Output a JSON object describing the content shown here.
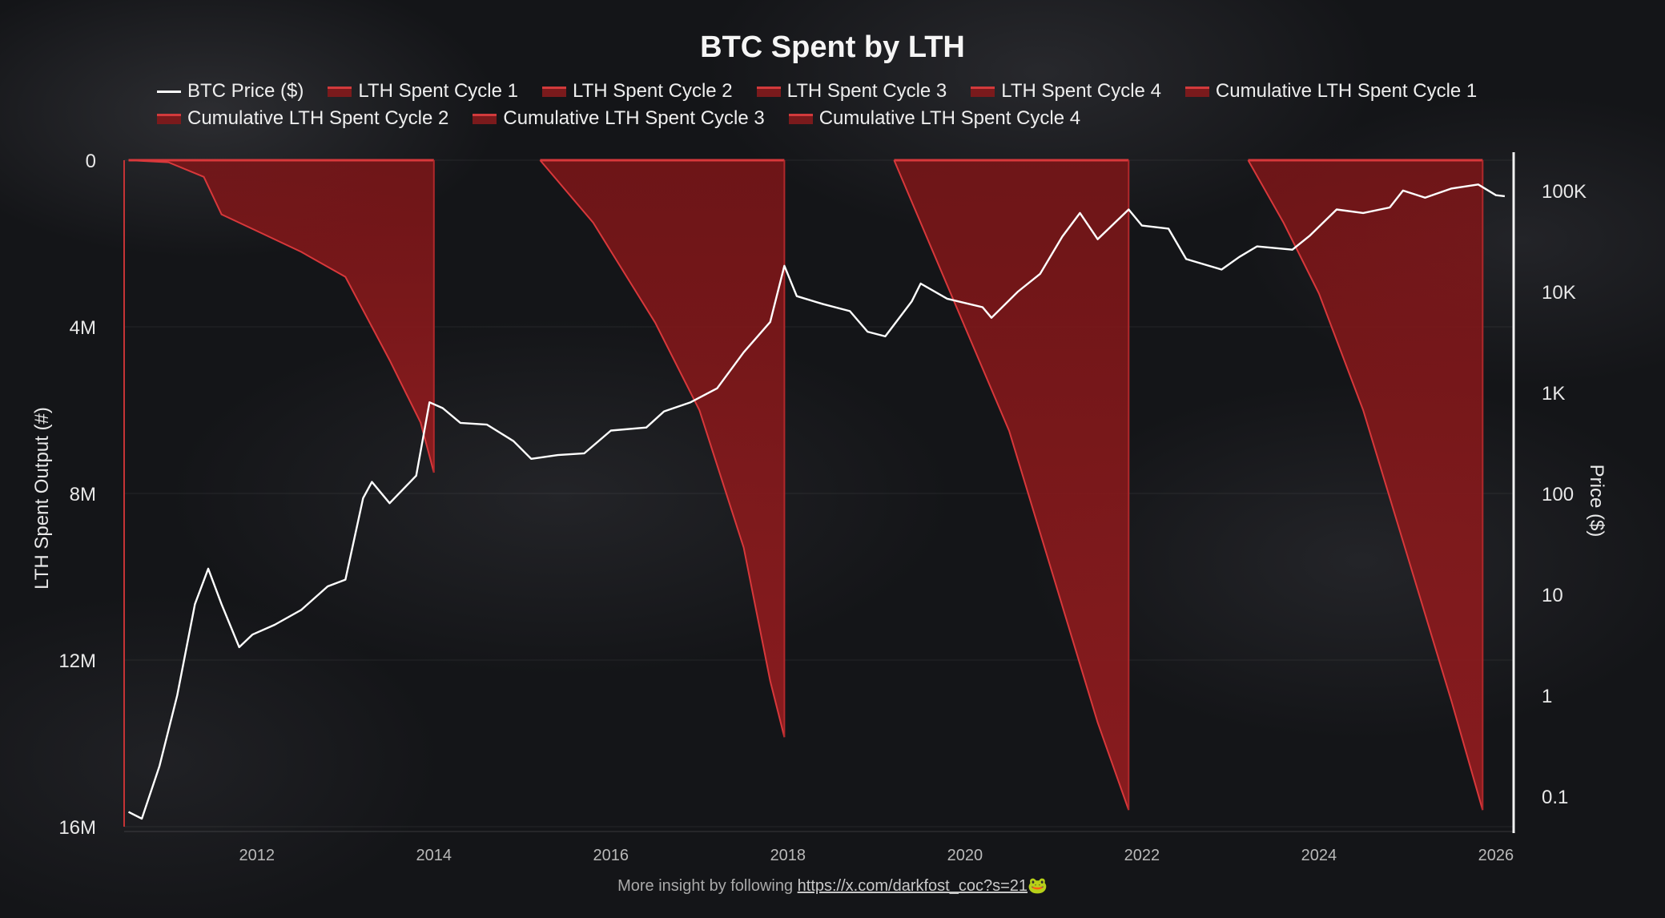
{
  "chart_data": {
    "type": "area",
    "title": "BTC Spent by LTH",
    "ylabel_left": "LTH Spent Output (#)",
    "ylabel_right": "Price ($)",
    "xlim": [
      2010.5,
      2026.2
    ],
    "ylim_left": [
      0,
      16000000
    ],
    "ylim_right_log": [
      0.05,
      200000
    ],
    "x_ticks": [
      "2012",
      "2014",
      "2016",
      "2018",
      "2020",
      "2022",
      "2024",
      "2026"
    ],
    "left_ticks": [
      "0",
      "4M",
      "8M",
      "12M",
      "16M"
    ],
    "right_ticks": [
      "100K",
      "10K",
      "1K",
      "100",
      "10",
      "1",
      "0.1"
    ],
    "legend": [
      {
        "label": "BTC Price ($)",
        "kind": "line"
      },
      {
        "label": "LTH Spent Cycle 1",
        "kind": "area"
      },
      {
        "label": "LTH Spent Cycle 2",
        "kind": "area"
      },
      {
        "label": "LTH Spent Cycle 3",
        "kind": "area"
      },
      {
        "label": "LTH Spent Cycle 4",
        "kind": "area"
      },
      {
        "label": "Cumulative LTH Spent Cycle 1",
        "kind": "area"
      },
      {
        "label": "Cumulative LTH Spent Cycle 2",
        "kind": "area"
      },
      {
        "label": "Cumulative LTH Spent Cycle 3",
        "kind": "area"
      },
      {
        "label": "Cumulative LTH Spent Cycle 4",
        "kind": "area"
      }
    ],
    "series": [
      {
        "name": "BTC Price ($)",
        "color": "#ffffff",
        "points": [
          [
            2010.55,
            0.07
          ],
          [
            2010.7,
            0.06
          ],
          [
            2010.9,
            0.2
          ],
          [
            2011.1,
            1
          ],
          [
            2011.3,
            8
          ],
          [
            2011.45,
            18
          ],
          [
            2011.6,
            8
          ],
          [
            2011.8,
            3
          ],
          [
            2011.95,
            4
          ],
          [
            2012.2,
            5
          ],
          [
            2012.5,
            7
          ],
          [
            2012.8,
            12
          ],
          [
            2013.0,
            14
          ],
          [
            2013.2,
            90
          ],
          [
            2013.3,
            130
          ],
          [
            2013.5,
            80
          ],
          [
            2013.8,
            150
          ],
          [
            2013.95,
            800
          ],
          [
            2014.1,
            700
          ],
          [
            2014.3,
            500
          ],
          [
            2014.6,
            480
          ],
          [
            2014.9,
            330
          ],
          [
            2015.1,
            220
          ],
          [
            2015.4,
            240
          ],
          [
            2015.7,
            250
          ],
          [
            2016.0,
            420
          ],
          [
            2016.4,
            450
          ],
          [
            2016.6,
            650
          ],
          [
            2016.9,
            800
          ],
          [
            2017.2,
            1100
          ],
          [
            2017.5,
            2500
          ],
          [
            2017.8,
            5000
          ],
          [
            2017.96,
            18000
          ],
          [
            2018.1,
            9000
          ],
          [
            2018.4,
            7500
          ],
          [
            2018.7,
            6400
          ],
          [
            2018.9,
            4000
          ],
          [
            2019.1,
            3600
          ],
          [
            2019.4,
            8000
          ],
          [
            2019.5,
            12000
          ],
          [
            2019.8,
            8500
          ],
          [
            2020.2,
            7000
          ],
          [
            2020.3,
            5500
          ],
          [
            2020.6,
            10000
          ],
          [
            2020.85,
            15000
          ],
          [
            2021.1,
            35000
          ],
          [
            2021.3,
            60000
          ],
          [
            2021.5,
            33000
          ],
          [
            2021.85,
            65000
          ],
          [
            2022.0,
            45000
          ],
          [
            2022.3,
            42000
          ],
          [
            2022.5,
            21000
          ],
          [
            2022.9,
            16500
          ],
          [
            2023.1,
            22000
          ],
          [
            2023.3,
            28000
          ],
          [
            2023.7,
            26000
          ],
          [
            2023.9,
            36000
          ],
          [
            2024.2,
            65000
          ],
          [
            2024.5,
            60000
          ],
          [
            2024.8,
            68000
          ],
          [
            2024.95,
            100000
          ],
          [
            2025.2,
            85000
          ],
          [
            2025.5,
            105000
          ],
          [
            2025.8,
            115000
          ],
          [
            2026.0,
            90000
          ],
          [
            2026.1,
            88000
          ]
        ]
      },
      {
        "name": "Cumulative LTH Spent Cycle 1",
        "color": "#8a1b1e",
        "points": [
          [
            2010.55,
            0
          ],
          [
            2011.0,
            50000
          ],
          [
            2011.4,
            400000
          ],
          [
            2011.6,
            1300000
          ],
          [
            2012.0,
            1700000
          ],
          [
            2012.5,
            2200000
          ],
          [
            2013.0,
            2800000
          ],
          [
            2013.5,
            4800000
          ],
          [
            2013.85,
            6300000
          ],
          [
            2014.0,
            7500000
          ]
        ]
      },
      {
        "name": "Cumulative LTH Spent Cycle 2",
        "color": "#8a1b1e",
        "points": [
          [
            2015.2,
            0
          ],
          [
            2015.8,
            1500000
          ],
          [
            2016.5,
            3900000
          ],
          [
            2017.0,
            6000000
          ],
          [
            2017.5,
            9300000
          ],
          [
            2017.8,
            12500000
          ],
          [
            2017.96,
            13850000
          ]
        ]
      },
      {
        "name": "Cumulative LTH Spent Cycle 3",
        "color": "#8a1b1e",
        "points": [
          [
            2019.2,
            0
          ],
          [
            2019.6,
            2000000
          ],
          [
            2020.0,
            4000000
          ],
          [
            2020.5,
            6500000
          ],
          [
            2021.0,
            10000000
          ],
          [
            2021.5,
            13500000
          ],
          [
            2021.85,
            15600000
          ]
        ]
      },
      {
        "name": "Cumulative LTH Spent Cycle 4",
        "color": "#8a1b1e",
        "points": [
          [
            2023.2,
            0
          ],
          [
            2023.6,
            1500000
          ],
          [
            2024.0,
            3200000
          ],
          [
            2024.5,
            6000000
          ],
          [
            2025.0,
            9500000
          ],
          [
            2025.5,
            13000000
          ],
          [
            2025.85,
            15600000
          ]
        ]
      }
    ]
  },
  "footer": {
    "text": "More insight by following",
    "link": "https://x.com/darkfost_coc?s=21",
    "emoji": "🐸"
  }
}
